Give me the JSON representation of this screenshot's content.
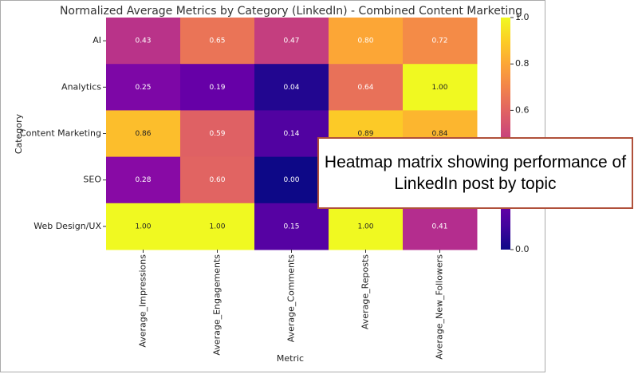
{
  "chart_data": {
    "type": "heatmap",
    "title": "Normalized Average Metrics by Category (LinkedIn) - Combined Content Marketing",
    "xlabel": "Metric",
    "ylabel": "Category",
    "columns": [
      "Average_Impressions",
      "Average_Engagements",
      "Average_Comments",
      "Average_Reposts",
      "Average_New_Followers"
    ],
    "rows": [
      "AI",
      "Analytics",
      "Content Marketing",
      "SEO",
      "Web Design/UX"
    ],
    "values": [
      [
        0.43,
        0.65,
        0.47,
        0.8,
        0.72
      ],
      [
        0.25,
        0.19,
        0.04,
        0.64,
        1.0
      ],
      [
        0.86,
        0.59,
        0.14,
        0.89,
        0.84
      ],
      [
        0.28,
        0.6,
        0.0,
        null,
        null
      ],
      [
        1.0,
        1.0,
        0.15,
        1.0,
        0.41
      ]
    ],
    "value_labels": [
      [
        "0.43",
        "0.65",
        "0.47",
        "0.80",
        "0.72"
      ],
      [
        "0.25",
        "0.19",
        "0.04",
        "0.64",
        "1.00"
      ],
      [
        "0.86",
        "0.59",
        "0.14",
        "0.89",
        "0.84"
      ],
      [
        "0.28",
        "0.60",
        "0.00",
        null,
        null
      ],
      [
        "1.00",
        "1.00",
        "0.15",
        "1.00",
        "0.41"
      ]
    ],
    "colormap": "plasma",
    "clim": [
      0,
      1
    ],
    "colorbar_ticks": [
      {
        "value": 0,
        "label": "0.0"
      },
      {
        "value": 0.6,
        "label": "0.6"
      },
      {
        "value": 0.8,
        "label": "0.8"
      },
      {
        "value": 1,
        "label": "1.0"
      }
    ],
    "annotation": "Heatmap matrix showing performance of LinkedIn post by topic"
  }
}
